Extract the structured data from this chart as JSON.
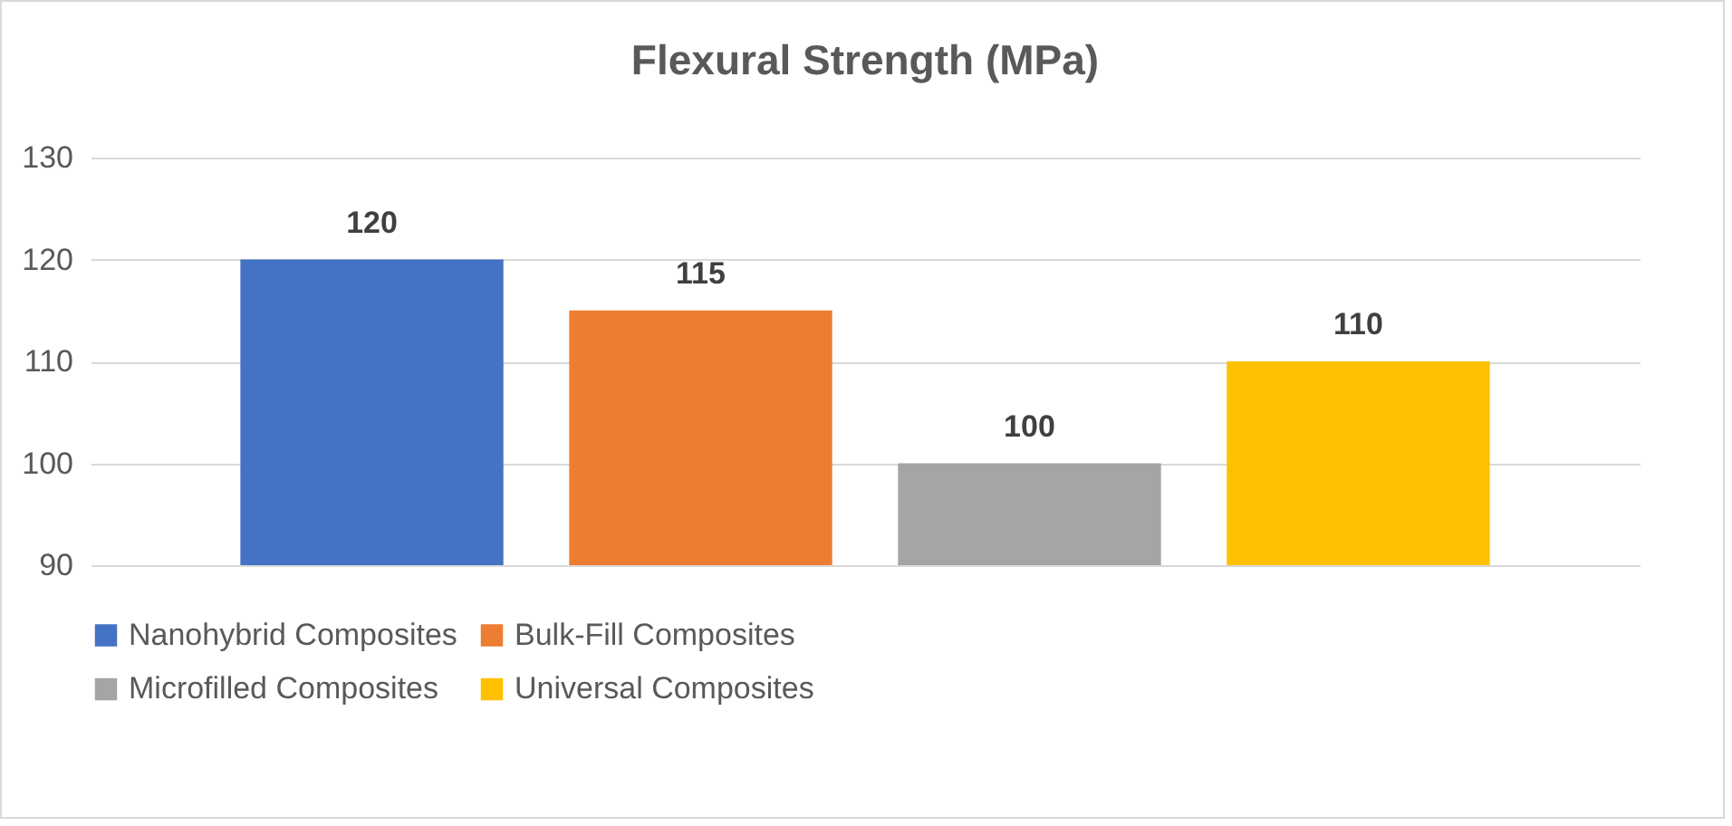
{
  "chart_data": {
    "type": "bar",
    "title": "Flexural Strength (MPa)",
    "categories": [
      null
    ],
    "series": [
      {
        "name": "Nanohybrid Composites",
        "color": "#4472c4",
        "values": [
          120
        ]
      },
      {
        "name": "Bulk-Fill Composites",
        "color": "#ed7d31",
        "values": [
          115
        ]
      },
      {
        "name": "Microfilled Composites",
        "color": "#a5a5a5",
        "values": [
          100
        ]
      },
      {
        "name": "Universal Composites",
        "color": "#ffc000",
        "values": [
          110
        ]
      }
    ],
    "ylim": [
      90,
      130
    ],
    "yticks": [
      90,
      100,
      110,
      120,
      130
    ],
    "grid": "y",
    "legend": "bottom",
    "data_labels": true
  }
}
